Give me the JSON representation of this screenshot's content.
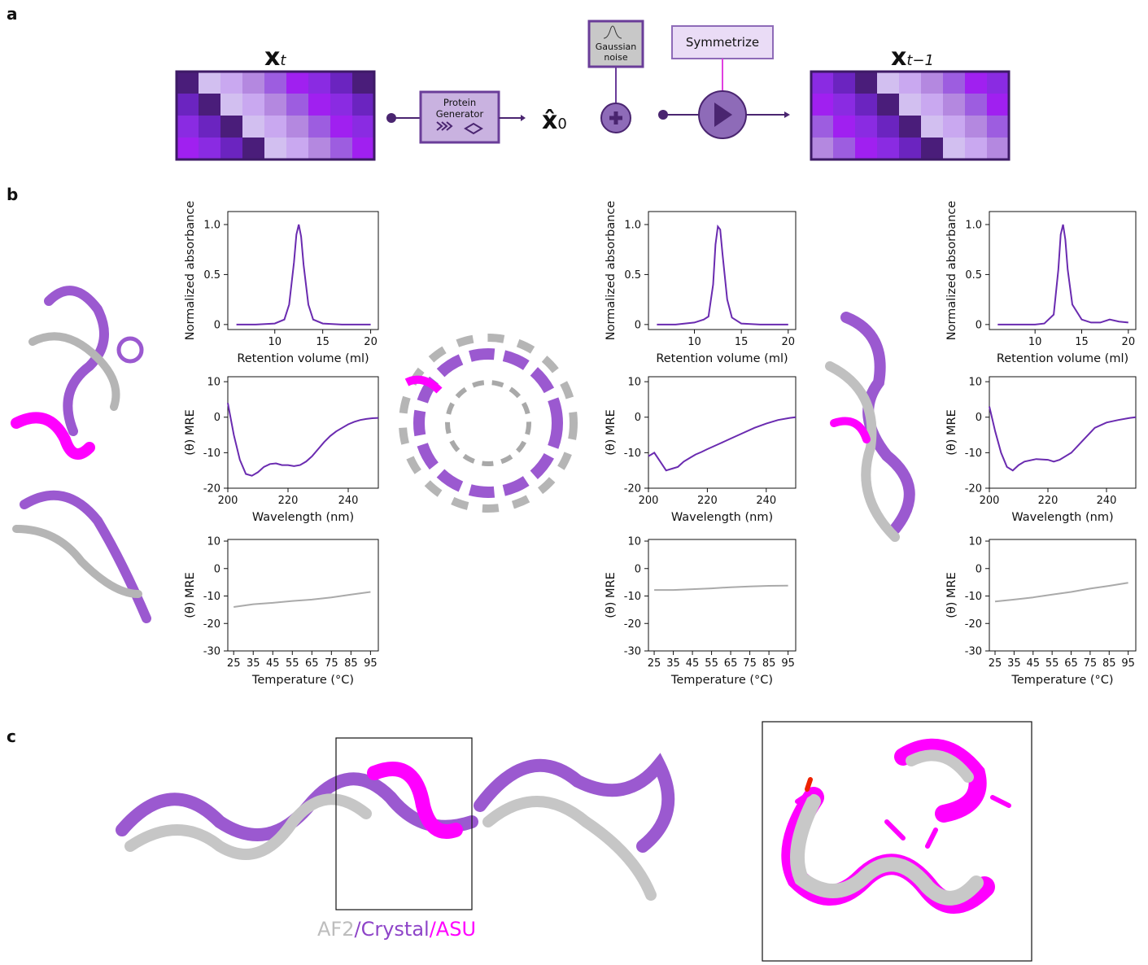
{
  "panel_labels": [
    "a",
    "b",
    "c"
  ],
  "diagram": {
    "input": "x",
    "input_sub": "t",
    "generator": [
      "Protein",
      "Generator"
    ],
    "estimate": "x̂",
    "estimate_sub": "0",
    "noise": [
      "Gaussian",
      "noise"
    ],
    "symmetrize": "Symmetrize",
    "output": "x",
    "output_sub": "t−1"
  },
  "legend": [
    {
      "text": "AF2",
      "color": "#bdbdbd"
    },
    {
      "text": "/Crystal",
      "color": "#8e44c8"
    },
    {
      "text": "/ASU",
      "color": "#ff00ff"
    }
  ],
  "chart_data": [
    {
      "type": "line",
      "xlabel": "Retention volume (ml)",
      "ylabel": "Normalized absorbance",
      "color": "#6a2bb0",
      "xlim": [
        5.1,
        20.8
      ],
      "ylim": [
        -0.05,
        1.13
      ],
      "xticks": [
        10,
        15,
        20
      ],
      "yticks": [
        0,
        0.5,
        {
          "value": 1,
          "label": "1.0"
        }
      ],
      "x": [
        6,
        8,
        10,
        11,
        11.5,
        12,
        12.25,
        12.5,
        12.75,
        13,
        13.5,
        14,
        15,
        17,
        20
      ],
      "values": [
        0,
        0,
        0.01,
        0.05,
        0.2,
        0.62,
        0.9,
        1,
        0.88,
        0.6,
        0.2,
        0.05,
        0.01,
        0,
        0
      ]
    },
    {
      "type": "line",
      "xlabel": "Wavelength (nm)",
      "ylabel": "(θ) MRE",
      "color": "#6a2bb0",
      "xlim": [
        200,
        250
      ],
      "ylim": [
        -20,
        11.4
      ],
      "xticks": [
        200,
        220,
        240
      ],
      "yticks": [
        10,
        0,
        -10,
        -20
      ],
      "x": [
        200,
        202,
        204,
        206,
        208,
        210,
        212,
        214,
        216,
        218,
        220,
        222,
        224,
        226,
        228,
        230,
        232,
        234,
        236,
        238,
        240,
        242,
        244,
        246,
        248,
        250
      ],
      "values": [
        4,
        -5,
        -12,
        -16,
        -16.5,
        -15.5,
        -14,
        -13.2,
        -13,
        -13.5,
        -13.5,
        -13.8,
        -13.5,
        -12.5,
        -11,
        -9,
        -7,
        -5.3,
        -4,
        -3,
        -2,
        -1.3,
        -0.8,
        -0.5,
        -0.3,
        -0.2
      ]
    },
    {
      "type": "line",
      "xlabel": "Temperature (°C)",
      "ylabel": "(θ) MRE",
      "color": "#aaaaaa",
      "xlim": [
        22,
        99
      ],
      "ylim": [
        -30,
        10.6
      ],
      "xticks": [
        25,
        35,
        45,
        55,
        65,
        75,
        85,
        95
      ],
      "yticks": [
        10,
        0,
        -10,
        -20,
        -30
      ],
      "x": [
        25,
        35,
        45,
        55,
        65,
        75,
        85,
        95
      ],
      "values": [
        -14,
        -13,
        -12.5,
        -11.8,
        -11.3,
        -10.5,
        -9.5,
        -8.5
      ]
    },
    {
      "type": "line",
      "xlabel": "Retention volume (ml)",
      "ylabel": "Normalized absorbance",
      "color": "#6a2bb0",
      "xlim": [
        5.1,
        20.8
      ],
      "ylim": [
        -0.05,
        1.13
      ],
      "xticks": [
        10,
        15,
        20
      ],
      "yticks": [
        0,
        0.5,
        {
          "value": 1,
          "label": "1.0"
        }
      ],
      "x": [
        6,
        8,
        10,
        11,
        11.5,
        12,
        12.25,
        12.5,
        12.75,
        13,
        13.5,
        14,
        15,
        17,
        20
      ],
      "values": [
        0,
        0,
        0.02,
        0.05,
        0.08,
        0.4,
        0.8,
        0.98,
        0.95,
        0.7,
        0.25,
        0.07,
        0.01,
        0,
        0
      ]
    },
    {
      "type": "line",
      "xlabel": "Wavelength (nm)",
      "ylabel": "(θ) MRE",
      "color": "#6a2bb0",
      "xlim": [
        200,
        250
      ],
      "ylim": [
        -20,
        11.4
      ],
      "xticks": [
        200,
        220,
        240
      ],
      "yticks": [
        10,
        0,
        -10,
        -20
      ],
      "x": [
        200,
        202,
        204,
        206,
        208,
        210,
        212,
        214,
        216,
        218,
        220,
        224,
        228,
        232,
        236,
        240,
        244,
        248,
        250
      ],
      "values": [
        -11,
        -10,
        -12.5,
        -15,
        -14.5,
        -14,
        -12.5,
        -11.5,
        -10.5,
        -9.8,
        -9,
        -7.5,
        -6,
        -4.5,
        -3,
        -1.8,
        -0.8,
        -0.2,
        0
      ]
    },
    {
      "type": "line",
      "xlabel": "Temperature (°C)",
      "ylabel": "(θ) MRE",
      "color": "#aaaaaa",
      "xlim": [
        22,
        99
      ],
      "ylim": [
        -30,
        10.6
      ],
      "xticks": [
        25,
        35,
        45,
        55,
        65,
        75,
        85,
        95
      ],
      "yticks": [
        10,
        0,
        -10,
        -20,
        -30
      ],
      "x": [
        25,
        35,
        45,
        55,
        65,
        75,
        85,
        95
      ],
      "values": [
        -7.8,
        -7.8,
        -7.5,
        -7.2,
        -6.8,
        -6.5,
        -6.3,
        -6.2
      ]
    },
    {
      "type": "line",
      "xlabel": "Retention volume (ml)",
      "ylabel": "Normalized absorbance",
      "color": "#6a2bb0",
      "xlim": [
        5.1,
        20.8
      ],
      "ylim": [
        -0.05,
        1.13
      ],
      "xticks": [
        10,
        15,
        20
      ],
      "yticks": [
        0,
        0.5,
        {
          "value": 1,
          "label": "1.0"
        }
      ],
      "x": [
        6,
        8,
        10,
        11,
        12,
        12.5,
        12.75,
        13,
        13.25,
        13.5,
        14,
        15,
        16,
        17,
        18,
        19,
        20
      ],
      "values": [
        0,
        0,
        0,
        0.01,
        0.1,
        0.55,
        0.9,
        1,
        0.85,
        0.55,
        0.2,
        0.05,
        0.02,
        0.02,
        0.05,
        0.03,
        0.02
      ]
    },
    {
      "type": "line",
      "xlabel": "Wavelength (nm)",
      "ylabel": "(θ) MRE",
      "color": "#6a2bb0",
      "xlim": [
        200,
        250
      ],
      "ylim": [
        -20,
        11.4
      ],
      "xticks": [
        200,
        220,
        240
      ],
      "yticks": [
        10,
        0,
        -10,
        -20
      ],
      "x": [
        200,
        202,
        204,
        206,
        208,
        210,
        212,
        216,
        220,
        222,
        224,
        228,
        232,
        236,
        240,
        244,
        248,
        250
      ],
      "values": [
        3,
        -4,
        -10,
        -14,
        -15,
        -13.5,
        -12.5,
        -11.8,
        -12,
        -12.5,
        -12,
        -10,
        -6.5,
        -3,
        -1.5,
        -0.8,
        -0.2,
        0
      ]
    },
    {
      "type": "line",
      "xlabel": "Temperature (°C)",
      "ylabel": "(θ) MRE",
      "color": "#aaaaaa",
      "xlim": [
        22,
        99
      ],
      "ylim": [
        -30,
        10.6
      ],
      "xticks": [
        25,
        35,
        45,
        55,
        65,
        75,
        85,
        95
      ],
      "yticks": [
        10,
        0,
        -10,
        -20,
        -30
      ],
      "x": [
        25,
        35,
        45,
        55,
        65,
        75,
        85,
        95
      ],
      "values": [
        -12,
        -11.3,
        -10.5,
        -9.5,
        -8.5,
        -7.3,
        -6.3,
        -5.2
      ]
    }
  ]
}
